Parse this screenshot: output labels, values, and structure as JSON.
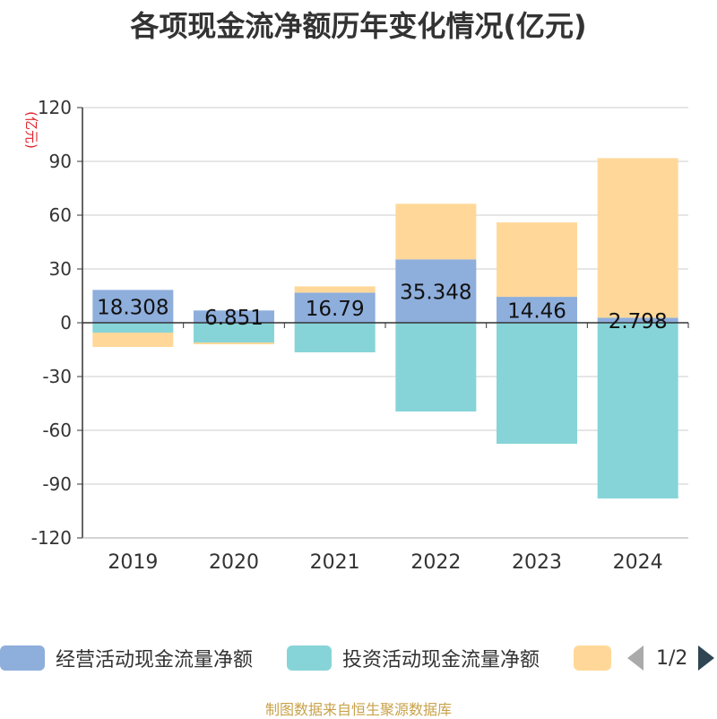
{
  "chart_data": {
    "type": "bar",
    "stacked": true,
    "title": "各项现金流净额历年变化情况(亿元)",
    "ylabel": "(亿元)",
    "categories": [
      "2019",
      "2020",
      "2021",
      "2022",
      "2023",
      "2024"
    ],
    "ylim": [
      -120,
      120
    ],
    "yticks": [
      120,
      90,
      60,
      30,
      0,
      -30,
      -60,
      -90,
      -120
    ],
    "grid": true,
    "legend_position": "bottom",
    "series": [
      {
        "name": "经营活动现金流量净额",
        "color": "#8eaedc",
        "values": [
          18.308,
          6.851,
          16.79,
          35.348,
          14.46,
          2.798
        ],
        "labels": [
          "18.308",
          "6.851",
          "16.79",
          "35.348",
          "14.46",
          "2.798"
        ]
      },
      {
        "name": "投资活动现金流量净额",
        "color": "#86d4d8",
        "values": [
          -5.5,
          -11.0,
          -16.5,
          -49.5,
          -67.5,
          -98.0
        ]
      },
      {
        "name": "",
        "color": "#ffd899",
        "values": [
          -8.0,
          -1.0,
          3.5,
          31.0,
          41.5,
          89.0
        ]
      }
    ]
  },
  "legend": {
    "page_indicator": "1/2"
  },
  "source_note": "制图数据来自恒生聚源数据库"
}
